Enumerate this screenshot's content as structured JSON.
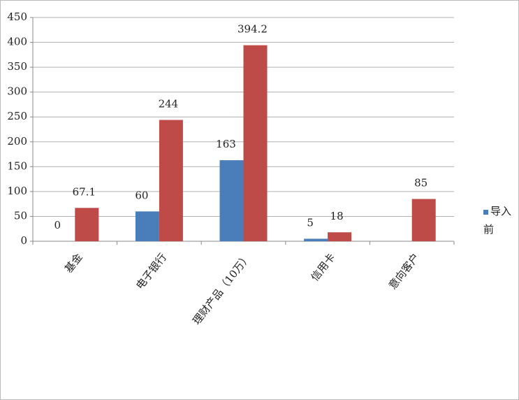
{
  "chart_data": {
    "type": "bar",
    "categories": [
      "基金",
      "电子银行",
      "理财产品（10万）",
      "信用卡",
      "意向客户"
    ],
    "series": [
      {
        "name": "导入前",
        "color": "#4a7ebb",
        "values": [
          0,
          60,
          163,
          5,
          null
        ]
      },
      {
        "color": "#be4b48",
        "values": [
          67.1,
          244,
          394.2,
          18,
          85
        ]
      }
    ],
    "ylim": [
      0,
      450
    ],
    "yticks": [
      0,
      50,
      100,
      150,
      200,
      250,
      300,
      350,
      400,
      450
    ],
    "grid": true
  }
}
